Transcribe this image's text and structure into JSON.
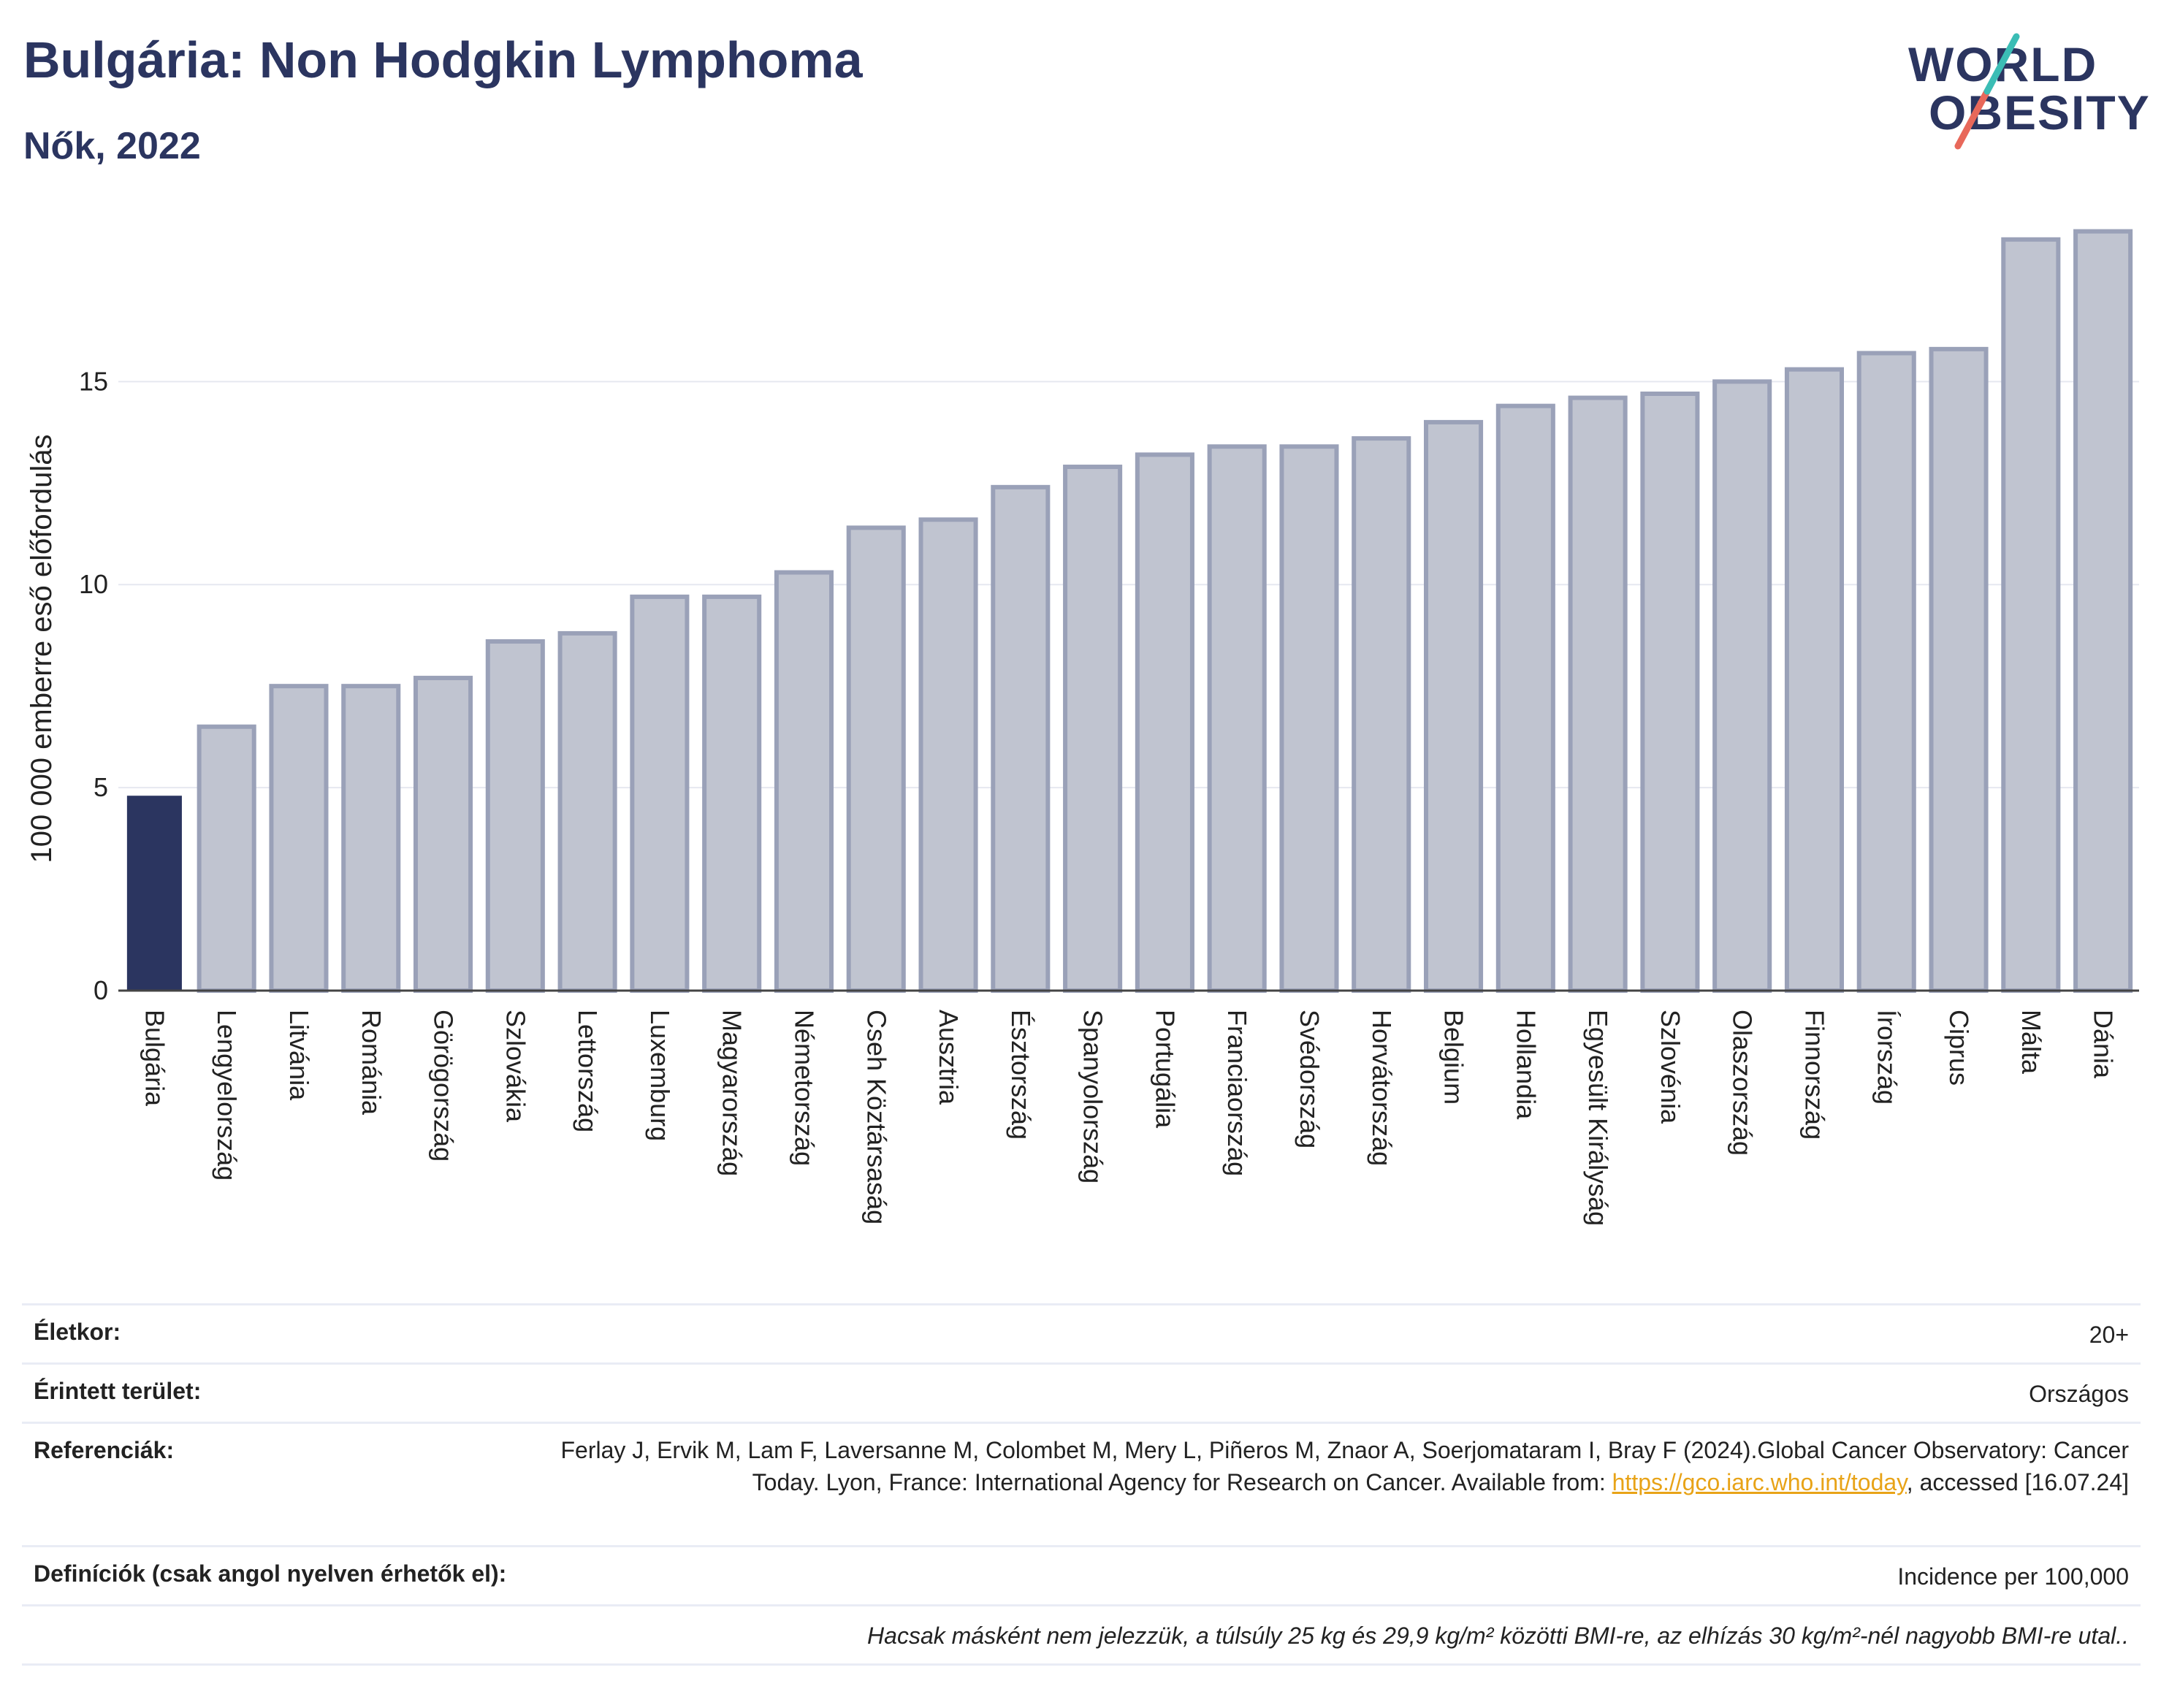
{
  "header": {
    "title": "Bulgária: Non Hodgkin Lymphoma",
    "subtitle": "Nők, 2022"
  },
  "logo": {
    "line1": "WORLD",
    "line2": "OBESITY"
  },
  "colors": {
    "highlight": "#2b3560",
    "bar": "#c0c4d0",
    "bar_edge": "#9aa1b8",
    "grid": "#e6e8f0",
    "link": "#e8a317"
  },
  "chart_data": {
    "type": "bar",
    "title": "Bulgária: Non Hodgkin Lymphoma",
    "subtitle": "Nők, 2022",
    "ylabel": "100 000 emberre eső előfordulás",
    "xlabel": "",
    "ylim": [
      0,
      19
    ],
    "yticks": [
      0,
      5,
      10,
      15
    ],
    "grid": "horizontal",
    "highlight_category": "Bulgária",
    "categories": [
      "Bulgária",
      "Lengyelország",
      "Litvánia",
      "Románia",
      "Görögország",
      "Szlovákia",
      "Lettország",
      "Luxemburg",
      "Magyarország",
      "Németország",
      "Cseh Köztársaság",
      "Ausztria",
      "Észtország",
      "Spanyolország",
      "Portugália",
      "Franciaország",
      "Svédország",
      "Horvátország",
      "Belgium",
      "Hollandia",
      "Egyesült Királyság",
      "Szlovénia",
      "Olaszország",
      "Finnország",
      "Írország",
      "Ciprus",
      "Málta",
      "Dánia"
    ],
    "values": [
      4.8,
      6.5,
      7.5,
      7.5,
      7.7,
      8.6,
      8.8,
      9.7,
      9.7,
      10.3,
      11.4,
      11.6,
      12.4,
      12.9,
      13.2,
      13.4,
      13.4,
      13.6,
      14.0,
      14.4,
      14.6,
      14.7,
      15.0,
      15.3,
      15.7,
      15.8,
      18.5,
      18.7
    ]
  },
  "info": {
    "age_label": "Életkor:",
    "age_value": "20+",
    "area_label": "Érintett terület:",
    "area_value": "Országos",
    "ref_label": "Referenciák:",
    "ref_text_1": "Ferlay J, Ervik M, Lam F, Laversanne M, Colombet M, Mery L, Piñeros M, Znaor A, Soerjomataram I, Bray F (2024).Global Cancer Observatory: Cancer Today. Lyon, France: International Agency for Research on Cancer. Available from: ",
    "ref_link": "https://gco.iarc.who.int/today",
    "ref_text_2": ", accessed [16.07.24]",
    "def_label": "Definíciók (csak angol nyelven érhetők el):",
    "def_value": "Incidence per 100,000",
    "note": "Hacsak másként nem jelezzük, a túlsúly 25 kg és 29,9 kg/m² közötti BMI-re, az elhízás 30 kg/m²-nél nagyobb BMI-re utal.."
  }
}
